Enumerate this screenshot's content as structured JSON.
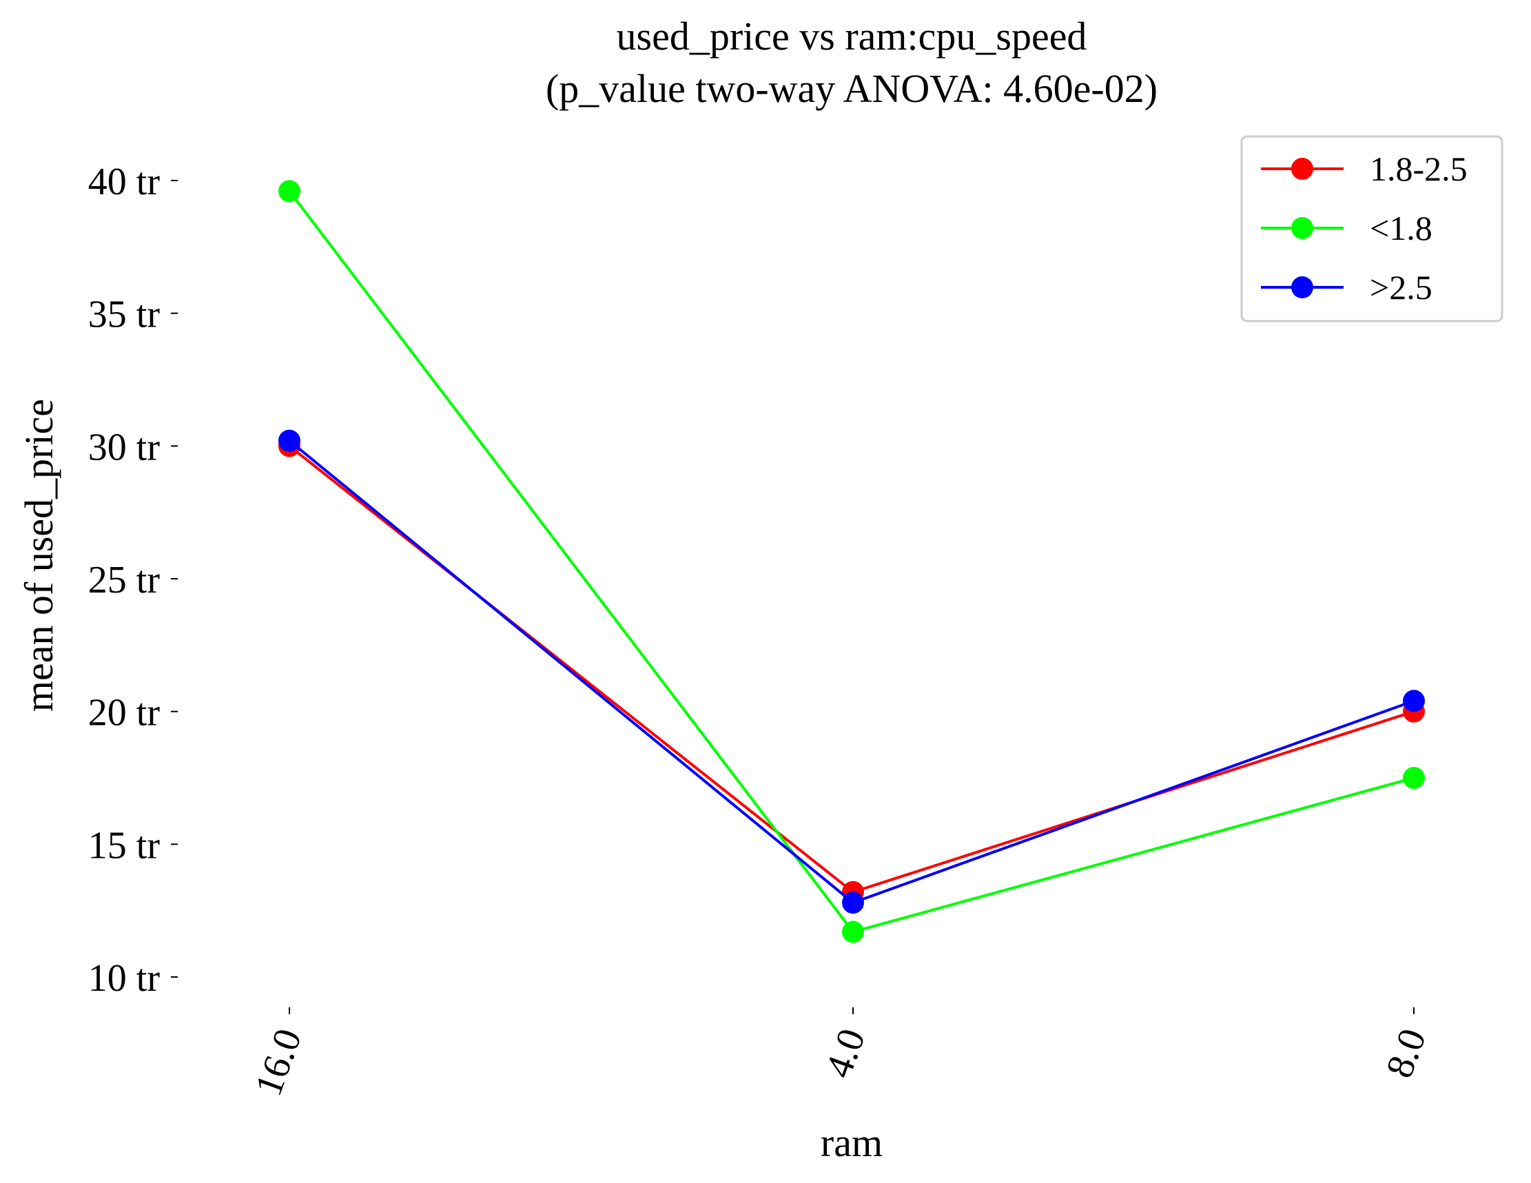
{
  "chart_data": {
    "type": "line",
    "title": "used_price vs ram:cpu_speed",
    "subtitle": "(p_value two-way ANOVA: 4.60e-02)",
    "xlabel": "ram",
    "ylabel": "mean of used_price",
    "categories": [
      "16.0",
      "4.0",
      "8.0"
    ],
    "y_ticks": [
      10,
      15,
      20,
      25,
      30,
      35,
      40
    ],
    "y_tick_suffix": " tr",
    "ylim": [
      8.5,
      41.5
    ],
    "grid": false,
    "legend_position": "top-right",
    "series": [
      {
        "name": "1.8-2.5",
        "color": "#ff0000",
        "values": [
          30.0,
          13.2,
          20.0
        ]
      },
      {
        "name": "<1.8",
        "color": "#00ff00",
        "values": [
          39.6,
          11.7,
          17.5
        ]
      },
      {
        "name": ">2.5",
        "color": "#0000ff",
        "values": [
          30.2,
          12.8,
          20.4
        ]
      }
    ]
  }
}
